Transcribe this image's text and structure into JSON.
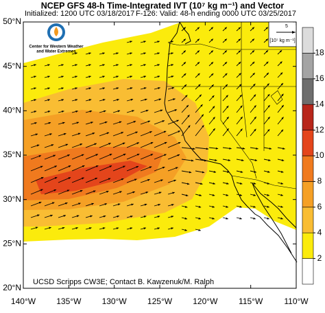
{
  "map_data": {
    "title": "NCEP GFS 48-h Time-Integrated IVT (10⁷ kg m⁻¹) and Vector",
    "initialized": "Initialized: 1200 UTC 03/18/2017",
    "valid": "F-126: Valid: 48-h ending 0000 UTC 03/25/2017",
    "logo": {
      "line1": "Center for Western Weather",
      "line2": "and Water Extremes"
    },
    "reference_vector": {
      "value": "5",
      "units": "[10⁷ kg m⁻¹]"
    },
    "footer": "UCSD Scripps CW3E; Contact B. Kawzenuk/M. Ralph",
    "lon_range": [
      -140,
      -110
    ],
    "lat_range": [
      20,
      50
    ],
    "lon_ticks": [
      {
        "value": -140,
        "label": "140°W"
      },
      {
        "value": -135,
        "label": "135°W"
      },
      {
        "value": -130,
        "label": "130°W"
      },
      {
        "value": -125,
        "label": "125°W"
      },
      {
        "value": -120,
        "label": "120°W"
      },
      {
        "value": -115,
        "label": "115°W"
      },
      {
        "value": -110,
        "label": "110°W"
      }
    ],
    "lat_ticks": [
      {
        "value": 50,
        "label": "50°N"
      },
      {
        "value": 45,
        "label": "45°N"
      },
      {
        "value": 40,
        "label": "40°N"
      },
      {
        "value": 35,
        "label": "35°N"
      },
      {
        "value": 30,
        "label": "30°N"
      },
      {
        "value": 25,
        "label": "25°N"
      },
      {
        "value": 20,
        "label": "20°N"
      }
    ],
    "colorbar": {
      "range": [
        0,
        20
      ],
      "ticks": [
        2,
        4,
        6,
        8,
        10,
        12,
        14,
        16,
        18
      ],
      "colors": [
        "#ffffff",
        "#fbeb0c",
        "#f9bd33",
        "#f5a025",
        "#f07a1e",
        "#e4451b",
        "#b8261b",
        "#6e6e6e",
        "#a4a4a4",
        "#dcdcdc"
      ]
    }
  }
}
